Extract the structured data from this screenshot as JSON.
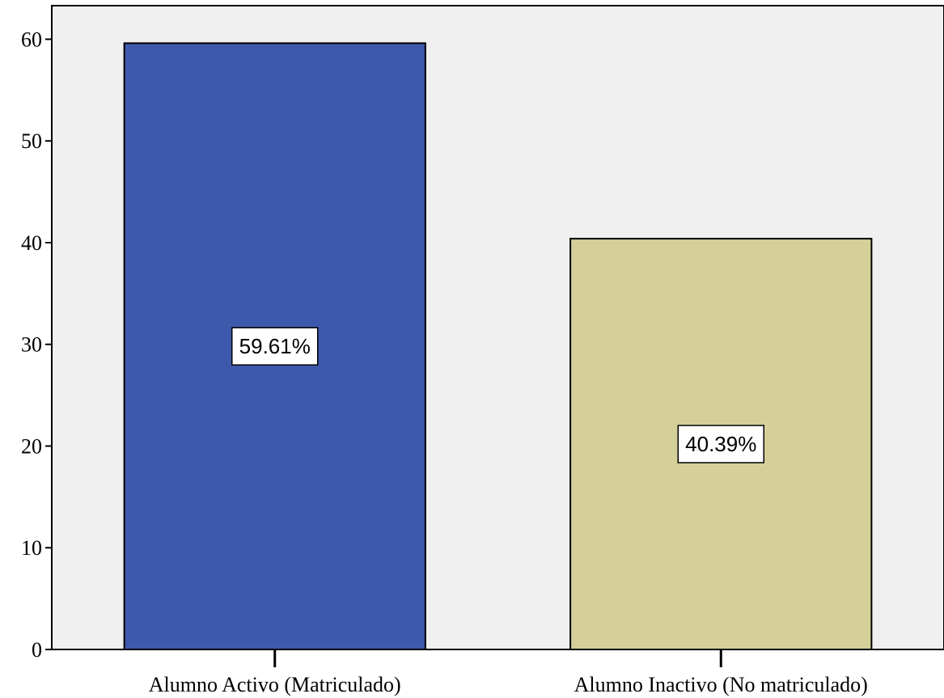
{
  "chart_data": {
    "type": "bar",
    "categories": [
      "Alumno Activo (Matriculado)",
      "Alumno Inactivo (No matriculado)"
    ],
    "values": [
      59.61,
      40.39
    ],
    "data_labels": [
      "59.61%",
      "40.39%"
    ],
    "ylim": [
      0,
      63.3
    ],
    "yticks": [
      0,
      10,
      20,
      30,
      40,
      50,
      60
    ],
    "grid": false,
    "legend": "none",
    "title": "",
    "xlabel": "",
    "ylabel": "",
    "colors": {
      "plot_background": "#f0f0f0",
      "bars": [
        "#3e58ac",
        "#d5cf9a"
      ],
      "bar_border": "#000000",
      "label_box": "#ffffff"
    }
  }
}
